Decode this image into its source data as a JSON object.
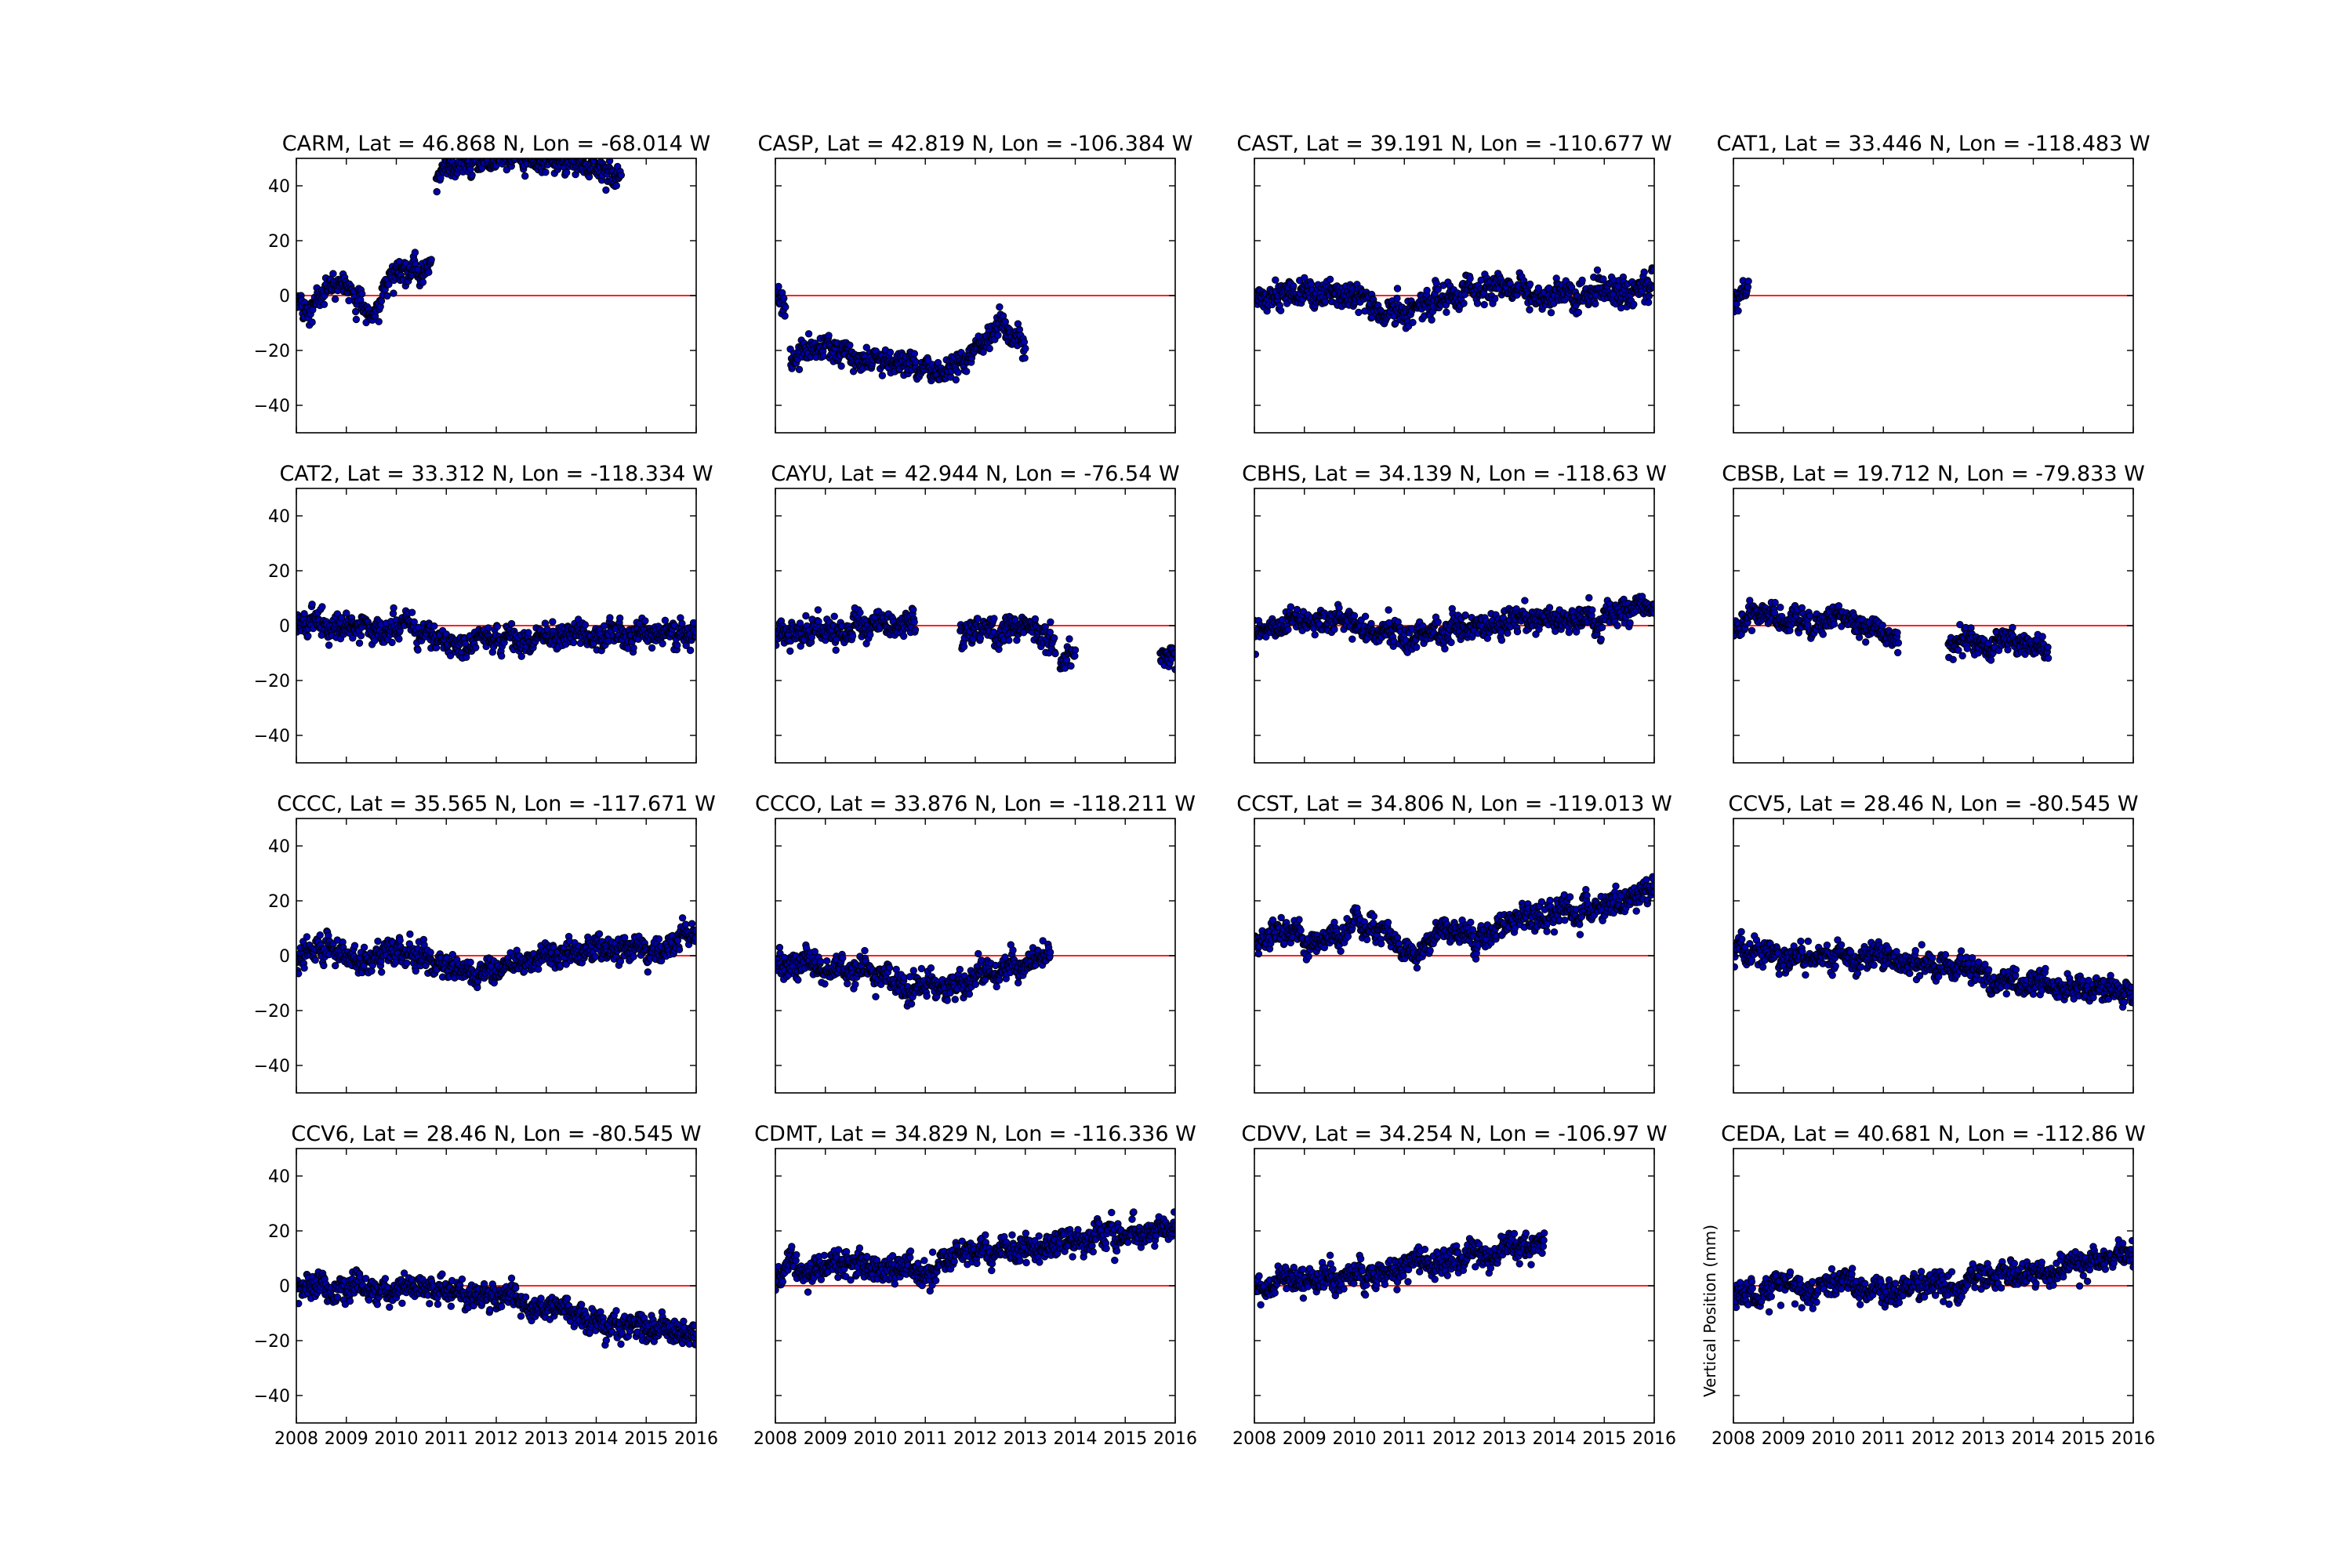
{
  "figure": {
    "ylabel": "Vertical Position (mm)"
  },
  "chart_data": {
    "type": "scatter",
    "grid": false,
    "legend": "none",
    "reference_line": {
      "y": 0,
      "color": "#ff0000"
    },
    "point_color": "#0000aa",
    "xlim": [
      2008,
      2016
    ],
    "ylim": [
      -50,
      50
    ],
    "x_ticks": [
      "2008",
      "2009",
      "2010",
      "2011",
      "2012",
      "2013",
      "2014",
      "2015",
      "2016"
    ],
    "y_ticks": [
      "40",
      "20",
      "0",
      "−20",
      "−40"
    ],
    "panels": [
      {
        "title": "CARM, Lat = 46.868 N, Lon = -68.014 W",
        "segments": [
          {
            "x": [
              2008.0,
              2009.0,
              2009.5,
              2010.0,
              2010.7
            ],
            "y": [
              -6,
              6,
              -7,
              9,
              10
            ]
          },
          {
            "x": [
              2010.8,
              2011.5,
              2012.2,
              2013.0,
              2014.0,
              2014.5
            ],
            "y": [
              42,
              48,
              50,
              50,
              46,
              44
            ]
          }
        ]
      },
      {
        "title": "CASP, Lat = 42.819 N, Lon = -106.384 W",
        "segments": [
          {
            "x": [
              2008.0,
              2008.2
            ],
            "y": [
              1,
              -5
            ]
          },
          {
            "x": [
              2008.3,
              2009.0,
              2010.0,
              2011.0,
              2011.5,
              2012.0,
              2012.5,
              2013.0
            ],
            "y": [
              -22,
              -20,
              -24,
              -26,
              -28,
              -20,
              -8,
              -20
            ]
          }
        ]
      },
      {
        "title": "CAST, Lat = 39.191 N, Lon = -110.677 W",
        "segments": [
          {
            "x": [
              2008.0,
              2009.0,
              2010.0,
              2011.0,
              2012.0,
              2013.0,
              2014.0,
              2015.0,
              2016.0
            ],
            "y": [
              0,
              1,
              -1,
              -6,
              0,
              2,
              0,
              1,
              4
            ]
          }
        ]
      },
      {
        "title": "CAT1, Lat = 33.446 N, Lon = -118.483 W",
        "segments": [
          {
            "x": [
              2008.0,
              2008.3
            ],
            "y": [
              -2,
              0
            ]
          }
        ]
      },
      {
        "title": "CAT2, Lat = 33.312 N, Lon = -118.334 W",
        "segments": [
          {
            "x": [
              2008.0,
              2009.0,
              2010.0,
              2011.0,
              2012.0,
              2013.0,
              2014.0,
              2015.0,
              2016.0
            ],
            "y": [
              1,
              0,
              -1,
              -5,
              -5,
              -4,
              -3,
              -3,
              -3
            ]
          }
        ]
      },
      {
        "title": "CAYU, Lat = 42.944 N, Lon = -76.54 W",
        "segments": [
          {
            "x": [
              2008.0,
              2009.0,
              2010.0,
              2010.8
            ],
            "y": [
              -3,
              -1,
              -1,
              2
            ]
          },
          {
            "x": [
              2011.7,
              2012.5,
              2013.0,
              2013.6
            ],
            "y": [
              0,
              -5,
              -1,
              -6
            ]
          },
          {
            "x": [
              2013.7,
              2014.0
            ],
            "y": [
              -12,
              -8
            ]
          },
          {
            "x": [
              2015.7,
              2016.0
            ],
            "y": [
              -10,
              -13
            ]
          }
        ]
      },
      {
        "title": "CBHS, Lat = 34.139 N, Lon = -118.63 W",
        "segments": [
          {
            "x": [
              2008.0,
              2009.0,
              2010.0,
              2011.0,
              2012.0,
              2013.0,
              2014.0,
              2015.0,
              2016.0
            ],
            "y": [
              -1,
              2,
              0,
              -5,
              -1,
              0,
              2,
              3,
              8
            ]
          }
        ]
      },
      {
        "title": "CBSB, Lat = 19.712 N, Lon = -79.833 W",
        "segments": [
          {
            "x": [
              2008.0,
              2008.5,
              2009.0,
              2010.0,
              2010.5,
              2011.3
            ],
            "y": [
              -2,
              5,
              0,
              3,
              0,
              -6
            ]
          },
          {
            "x": [
              2012.3,
              2013.0,
              2013.5,
              2014.3
            ],
            "y": [
              -6,
              -8,
              -5,
              -10
            ]
          }
        ]
      },
      {
        "title": "CCCC, Lat = 35.565 N, Lon = -117.671 W",
        "segments": [
          {
            "x": [
              2008.0,
              2008.6,
              2009.3,
              2010.0,
              2011.0,
              2011.5,
              2012.5,
              2013.0,
              2014.0,
              2015.0,
              2016.0
            ],
            "y": [
              -2,
              3,
              -4,
              2,
              -2,
              -8,
              -3,
              0,
              2,
              3,
              8
            ]
          }
        ]
      },
      {
        "title": "CCCO, Lat = 33.876 N, Lon = -118.211 W",
        "segments": [
          {
            "x": [
              2008.0,
              2009.0,
              2010.0,
              2011.0,
              2011.5,
              2012.0,
              2013.0,
              2013.5
            ],
            "y": [
              0,
              -5,
              -7,
              -11,
              -12,
              -6,
              -3,
              3
            ]
          }
        ]
      },
      {
        "title": "CCST, Lat = 34.806 N, Lon = -119.013 W",
        "segments": [
          {
            "x": [
              2008.0,
              2008.5,
              2009.2,
              2010.0,
              2010.7,
              2011.2,
              2011.6,
              2012.5,
              2013.0,
              2014.0,
              2015.0,
              2016.0
            ],
            "y": [
              5,
              10,
              3,
              13,
              6,
              0,
              9,
              8,
              12,
              15,
              18,
              24
            ]
          }
        ]
      },
      {
        "title": "CCV5, Lat = 28.46 N, Lon = -80.545 W",
        "segments": [
          {
            "x": [
              2008.0,
              2009.0,
              2010.0,
              2011.0,
              2012.0,
              2013.0,
              2014.0,
              2015.0,
              2016.0
            ],
            "y": [
              2,
              -1,
              -1,
              -1,
              -3,
              -6,
              -11,
              -12,
              -15
            ]
          }
        ]
      },
      {
        "title": "CCV6, Lat = 28.46 N, Lon = -80.545 W",
        "segments": [
          {
            "x": [
              2008.0,
              2009.0,
              2010.0,
              2011.0,
              2012.0,
              2013.0,
              2014.0,
              2015.0,
              2016.0
            ],
            "y": [
              -1,
              -1,
              -1,
              -1,
              -4,
              -8,
              -14,
              -15,
              -18
            ]
          }
        ]
      },
      {
        "title": "CDMT, Lat = 34.829 N, Lon = -116.336 W",
        "segments": [
          {
            "x": [
              2008.0,
              2009.0,
              2010.0,
              2011.0,
              2012.0,
              2013.0,
              2014.0,
              2015.0,
              2016.0
            ],
            "y": [
              3,
              8,
              8,
              6,
              12,
              13,
              16,
              19,
              22
            ]
          }
        ]
      },
      {
        "title": "CDVV, Lat = 34.254 N, Lon = -106.97 W",
        "segments": [
          {
            "x": [
              2008.0,
              2009.0,
              2010.0,
              2011.0,
              2012.0,
              2013.0,
              2013.8
            ],
            "y": [
              -1,
              1,
              3,
              6,
              10,
              13,
              16
            ]
          }
        ]
      },
      {
        "title": "CEDA, Lat = 40.681 N, Lon = -112.86 W",
        "segments": [
          {
            "x": [
              2008.0,
              2008.5,
              2009.0,
              2010.0,
              2011.0,
              2012.0,
              2013.0,
              2014.0,
              2015.0,
              2016.0
            ],
            "y": [
              -2,
              -4,
              0,
              1,
              -3,
              0,
              3,
              6,
              8,
              12
            ]
          }
        ]
      }
    ]
  }
}
